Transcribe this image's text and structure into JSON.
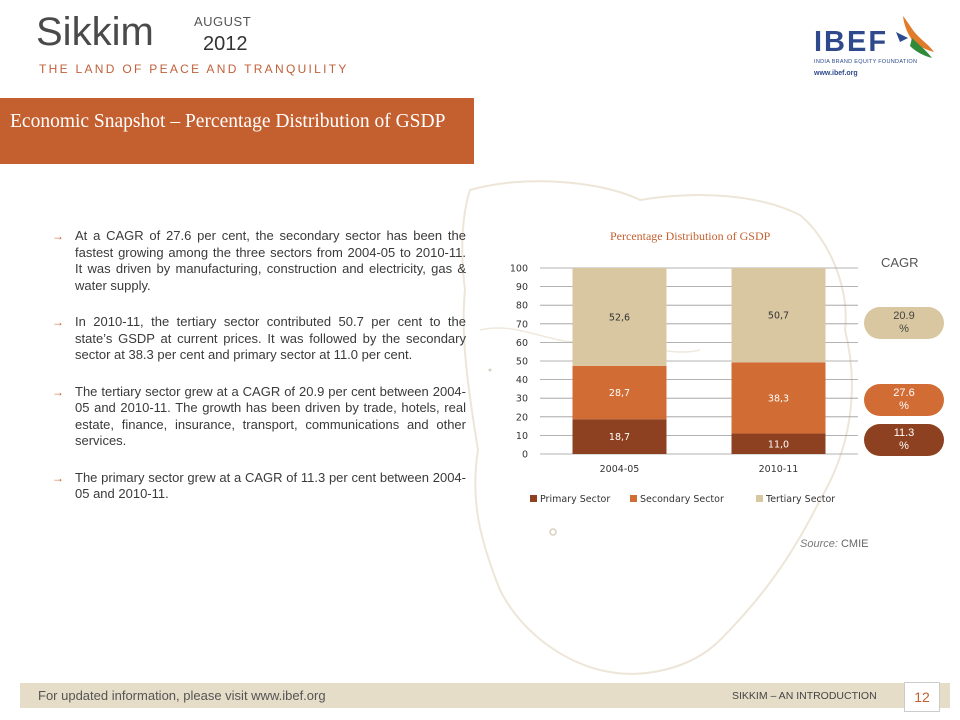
{
  "header": {
    "title": "Sikkim",
    "month": "AUGUST",
    "year": "2012",
    "tagline": "THE LAND OF PEACE AND TRANQUILITY"
  },
  "logo": {
    "name": "IBEF",
    "subtitle": "INDIA BRAND EQUITY FOUNDATION",
    "url": "www.ibef.org"
  },
  "section": {
    "title": "Economic Snapshot – Percentage Distribution of GSDP"
  },
  "bullets": [
    "At a CAGR of 27.6 per cent, the secondary sector has been the fastest growing among the three sectors from 2004-05 to 2010-11. It was driven by manufacturing, construction and electricity, gas & water supply.",
    "In 2010-11, the tertiary sector contributed 50.7 per cent to the state’s GSDP at current prices. It was followed by the secondary sector at 38.3 per cent and primary sector at 11.0 per cent.",
    "The tertiary sector grew at a CAGR of 20.9 per cent between 2004-05 and 2010-11. The growth has been driven by trade, hotels, real estate, finance, insurance, transport, communications and other services.",
    "The primary sector grew at a CAGR of 11.3 per cent between 2004-05 and 2010-11."
  ],
  "bullet_arrow": "→",
  "cagr": {
    "label": "CAGR",
    "tertiary": "20.9 %",
    "secondary": "27.6 %",
    "primary": "11.3 %"
  },
  "source": {
    "prefix": "Source:",
    "name": "CMIE"
  },
  "footer": {
    "left": "For updated information, please visit www.ibef.org",
    "right": "SIKKIM – AN INTRODUCTION",
    "page": "12"
  },
  "colors": {
    "primary": "#8e4120",
    "secondary": "#d26c35",
    "tertiary": "#d8c7a0",
    "accent": "#c46030"
  },
  "chart_data": {
    "type": "bar",
    "stacked": true,
    "title": "Percentage Distribution of GSDP",
    "categories": [
      "2004-05",
      "2010-11"
    ],
    "series": [
      {
        "name": "Primary Sector",
        "values": [
          18.7,
          11.0
        ],
        "labels": [
          "18,7",
          "11,0"
        ]
      },
      {
        "name": "Secondary Sector",
        "values": [
          28.7,
          38.3
        ],
        "labels": [
          "28,7",
          "38,3"
        ]
      },
      {
        "name": "Tertiary Sector",
        "values": [
          52.6,
          50.7
        ],
        "labels": [
          "52,6",
          "50,7"
        ]
      }
    ],
    "ylim": [
      0,
      100
    ],
    "yticks": [
      0,
      10,
      20,
      30,
      40,
      50,
      60,
      70,
      80,
      90,
      100
    ],
    "grid": true,
    "legend": "bottom"
  }
}
